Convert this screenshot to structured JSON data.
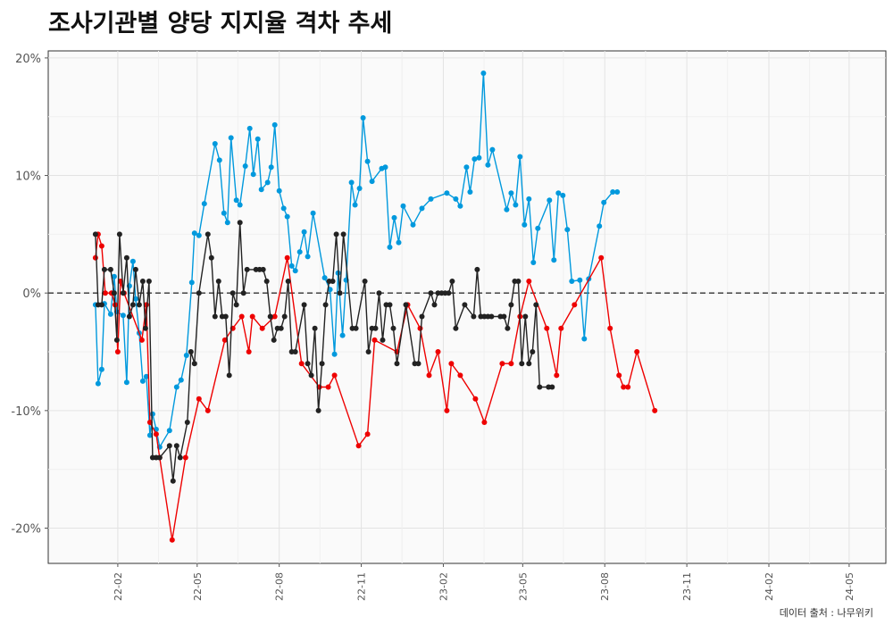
{
  "chart_data": {
    "type": "line",
    "title": "조사기관별 양당 지지율 격차 추세",
    "caption": "데이터 출처 : 나무위키",
    "xlabel": "",
    "ylabel": "",
    "x_axis": {
      "type": "date",
      "tick_labels": [
        "22-02",
        "22-05",
        "22-08",
        "22-11",
        "23-02",
        "23-05",
        "23-08",
        "23-11",
        "24-02",
        "24-05"
      ]
    },
    "y_axis": {
      "ylim": [
        -23,
        20.6
      ],
      "ticks": [
        -20,
        -10,
        0,
        10,
        20
      ],
      "tick_labels": [
        "-20%",
        "-10%",
        "0%",
        "10%",
        "20%"
      ]
    },
    "reference_line": {
      "y": 0,
      "style": "dashed"
    },
    "grid": true,
    "legend": "none",
    "series": [
      {
        "color": "#0099dd",
        "points": [
          [
            "2022-01-07",
            -1
          ],
          [
            "2022-01-10",
            -7.7
          ],
          [
            "2022-01-14",
            -6.5
          ],
          [
            "2022-01-17",
            -0.9
          ],
          [
            "2022-01-24",
            -1.8
          ],
          [
            "2022-01-28",
            1.4
          ],
          [
            "2022-01-31",
            -1.6
          ],
          [
            "2022-02-07",
            -1.9
          ],
          [
            "2022-02-11",
            -7.6
          ],
          [
            "2022-02-14",
            0.6
          ],
          [
            "2022-02-18",
            2.7
          ],
          [
            "2022-02-21",
            -0.5
          ],
          [
            "2022-02-25",
            -3.4
          ],
          [
            "2022-03-01",
            -7.5
          ],
          [
            "2022-03-05",
            -7.1
          ],
          [
            "2022-03-09",
            -12.1
          ],
          [
            "2022-03-12",
            -10.3
          ],
          [
            "2022-03-16",
            -11.6
          ],
          [
            "2022-03-20",
            -13.1
          ],
          [
            "2022-03-31",
            -11.7
          ],
          [
            "2022-04-08",
            -8
          ],
          [
            "2022-04-13",
            -7.4
          ],
          [
            "2022-04-19",
            -5.3
          ],
          [
            "2022-04-25",
            0.9
          ],
          [
            "2022-04-28",
            5.1
          ],
          [
            "2022-05-03",
            4.9
          ],
          [
            "2022-05-09",
            7.6
          ],
          [
            "2022-05-21",
            12.7
          ],
          [
            "2022-05-26",
            11.3
          ],
          [
            "2022-05-31",
            6.8
          ],
          [
            "2022-06-04",
            6.0
          ],
          [
            "2022-06-08",
            13.2
          ],
          [
            "2022-06-14",
            7.9
          ],
          [
            "2022-06-18",
            7.5
          ],
          [
            "2022-06-24",
            10.8
          ],
          [
            "2022-06-29",
            14.0
          ],
          [
            "2022-07-03",
            10.1
          ],
          [
            "2022-07-08",
            13.1
          ],
          [
            "2022-07-12",
            8.8
          ],
          [
            "2022-07-19",
            9.4
          ],
          [
            "2022-07-23",
            10.7
          ],
          [
            "2022-07-27",
            14.3
          ],
          [
            "2022-08-01",
            8.7
          ],
          [
            "2022-08-06",
            7.2
          ],
          [
            "2022-08-10",
            6.5
          ],
          [
            "2022-08-15",
            2.3
          ],
          [
            "2022-08-19",
            1.9
          ],
          [
            "2022-08-24",
            3.5
          ],
          [
            "2022-08-29",
            5.2
          ],
          [
            "2022-09-02",
            3.1
          ],
          [
            "2022-09-08",
            6.8
          ],
          [
            "2022-09-21",
            1.3
          ],
          [
            "2022-09-27",
            0.3
          ],
          [
            "2022-10-02",
            -5.2
          ],
          [
            "2022-10-06",
            1.7
          ],
          [
            "2022-10-11",
            -3.6
          ],
          [
            "2022-10-15",
            1.1
          ],
          [
            "2022-10-21",
            9.4
          ],
          [
            "2022-10-25",
            7.5
          ],
          [
            "2022-10-30",
            8.9
          ],
          [
            "2022-11-03",
            14.9
          ],
          [
            "2022-11-08",
            11.2
          ],
          [
            "2022-11-13",
            9.5
          ],
          [
            "2022-11-24",
            10.6
          ],
          [
            "2022-11-28",
            10.7
          ],
          [
            "2022-12-03",
            3.9
          ],
          [
            "2022-12-08",
            6.4
          ],
          [
            "2022-12-13",
            4.3
          ],
          [
            "2022-12-18",
            7.4
          ],
          [
            "2022-12-29",
            5.8
          ],
          [
            "2023-01-08",
            7.2
          ],
          [
            "2023-01-18",
            8.0
          ],
          [
            "2023-02-05",
            8.5
          ],
          [
            "2023-02-15",
            8.0
          ],
          [
            "2023-02-20",
            7.4
          ],
          [
            "2023-02-27",
            10.7
          ],
          [
            "2023-03-03",
            8.6
          ],
          [
            "2023-03-08",
            11.4
          ],
          [
            "2023-03-13",
            11.5
          ],
          [
            "2023-03-18",
            18.7
          ],
          [
            "2023-03-23",
            10.9
          ],
          [
            "2023-03-28",
            12.2
          ],
          [
            "2023-04-13",
            7.1
          ],
          [
            "2023-04-18",
            8.5
          ],
          [
            "2023-04-23",
            7.5
          ],
          [
            "2023-04-28",
            11.6
          ],
          [
            "2023-05-03",
            5.8
          ],
          [
            "2023-05-08",
            8.0
          ],
          [
            "2023-05-13",
            2.6
          ],
          [
            "2023-05-18",
            5.5
          ],
          [
            "2023-05-31",
            7.9
          ],
          [
            "2023-06-05",
            2.8
          ],
          [
            "2023-06-10",
            8.5
          ],
          [
            "2023-06-15",
            8.3
          ],
          [
            "2023-06-20",
            5.4
          ],
          [
            "2023-06-25",
            1.0
          ],
          [
            "2023-07-04",
            1.1
          ],
          [
            "2023-07-09",
            -3.9
          ],
          [
            "2023-07-14",
            1.2
          ],
          [
            "2023-07-26",
            5.7
          ],
          [
            "2023-07-31",
            7.7
          ],
          [
            "2023-08-10",
            8.6
          ],
          [
            "2023-08-15",
            8.6
          ]
        ]
      },
      {
        "color": "#ee0000",
        "points": [
          [
            "2022-01-07",
            3
          ],
          [
            "2022-01-10",
            5
          ],
          [
            "2022-01-14",
            4
          ],
          [
            "2022-01-18",
            0
          ],
          [
            "2022-01-25",
            0
          ],
          [
            "2022-01-29",
            -1
          ],
          [
            "2022-02-01",
            -5
          ],
          [
            "2022-02-04",
            1
          ],
          [
            "2022-02-08",
            0
          ],
          [
            "2022-02-28",
            -4
          ],
          [
            "2022-03-05",
            -1
          ],
          [
            "2022-03-09",
            -11
          ],
          [
            "2022-03-16",
            -12
          ],
          [
            "2022-03-20",
            -14
          ],
          [
            "2022-04-03",
            -21
          ],
          [
            "2022-04-18",
            -14
          ],
          [
            "2022-05-03",
            -9
          ],
          [
            "2022-05-13",
            -10
          ],
          [
            "2022-06-01",
            -4
          ],
          [
            "2022-06-10",
            -3
          ],
          [
            "2022-06-20",
            -2
          ],
          [
            "2022-06-28",
            -5
          ],
          [
            "2022-07-02",
            -2
          ],
          [
            "2022-07-13",
            -3
          ],
          [
            "2022-07-27",
            -2
          ],
          [
            "2022-08-10",
            3
          ],
          [
            "2022-08-26",
            -6
          ],
          [
            "2022-09-15",
            -8
          ],
          [
            "2022-09-25",
            -8
          ],
          [
            "2022-10-02",
            -7
          ],
          [
            "2022-10-29",
            -13
          ],
          [
            "2022-11-08",
            -12
          ],
          [
            "2022-11-16",
            -4
          ],
          [
            "2022-12-11",
            -5
          ],
          [
            "2022-12-23",
            -1
          ],
          [
            "2023-01-06",
            -3
          ],
          [
            "2023-01-16",
            -7
          ],
          [
            "2023-01-26",
            -5
          ],
          [
            "2023-02-05",
            -10
          ],
          [
            "2023-02-10",
            -6
          ],
          [
            "2023-02-20",
            -7
          ],
          [
            "2023-03-09",
            -9
          ],
          [
            "2023-03-19",
            -11
          ],
          [
            "2023-04-08",
            -6
          ],
          [
            "2023-04-18",
            -6
          ],
          [
            "2023-04-28",
            -2
          ],
          [
            "2023-05-08",
            1
          ],
          [
            "2023-05-28",
            -3
          ],
          [
            "2023-06-08",
            -7
          ],
          [
            "2023-06-13",
            -3
          ],
          [
            "2023-06-28",
            -1
          ],
          [
            "2023-07-28",
            3
          ],
          [
            "2023-08-07",
            -3
          ],
          [
            "2023-08-17",
            -7
          ],
          [
            "2023-08-22",
            -8
          ],
          [
            "2023-08-27",
            -8
          ],
          [
            "2023-09-06",
            -5
          ],
          [
            "2023-09-26",
            -10
          ]
        ]
      },
      {
        "color": "#222222",
        "points": [
          [
            "2022-01-07",
            5
          ],
          [
            "2022-01-10",
            -1
          ],
          [
            "2022-01-14",
            -1
          ],
          [
            "2022-01-17",
            2
          ],
          [
            "2022-01-24",
            2
          ],
          [
            "2022-01-28",
            0
          ],
          [
            "2022-01-31",
            -4
          ],
          [
            "2022-02-03",
            5
          ],
          [
            "2022-02-07",
            0
          ],
          [
            "2022-02-11",
            3
          ],
          [
            "2022-02-14",
            -2
          ],
          [
            "2022-02-18",
            -1
          ],
          [
            "2022-02-21",
            2
          ],
          [
            "2022-02-25",
            -1
          ],
          [
            "2022-03-01",
            1
          ],
          [
            "2022-03-04",
            -3
          ],
          [
            "2022-03-08",
            1
          ],
          [
            "2022-03-12",
            -14
          ],
          [
            "2022-03-16",
            -14
          ],
          [
            "2022-03-20",
            -14
          ],
          [
            "2022-03-31",
            -13
          ],
          [
            "2022-04-04",
            -16
          ],
          [
            "2022-04-08",
            -13
          ],
          [
            "2022-04-12",
            -14
          ],
          [
            "2022-04-20",
            -11
          ],
          [
            "2022-04-24",
            -5
          ],
          [
            "2022-04-28",
            -6
          ],
          [
            "2022-05-03",
            0
          ],
          [
            "2022-05-13",
            5
          ],
          [
            "2022-05-17",
            3
          ],
          [
            "2022-05-21",
            -2
          ],
          [
            "2022-05-25",
            1
          ],
          [
            "2022-05-29",
            -2
          ],
          [
            "2022-06-02",
            -2
          ],
          [
            "2022-06-06",
            -7
          ],
          [
            "2022-06-10",
            0
          ],
          [
            "2022-06-14",
            -1
          ],
          [
            "2022-06-18",
            6
          ],
          [
            "2022-06-22",
            0
          ],
          [
            "2022-06-26",
            2
          ],
          [
            "2022-07-06",
            2
          ],
          [
            "2022-07-10",
            2
          ],
          [
            "2022-07-14",
            2
          ],
          [
            "2022-07-18",
            1
          ],
          [
            "2022-07-22",
            -2
          ],
          [
            "2022-07-26",
            -4
          ],
          [
            "2022-07-30",
            -3
          ],
          [
            "2022-08-03",
            -3
          ],
          [
            "2022-08-07",
            -2
          ],
          [
            "2022-08-11",
            1
          ],
          [
            "2022-08-15",
            -5
          ],
          [
            "2022-08-19",
            -5
          ],
          [
            "2022-08-29",
            -1
          ],
          [
            "2022-09-02",
            -6
          ],
          [
            "2022-09-06",
            -7
          ],
          [
            "2022-09-10",
            -3
          ],
          [
            "2022-09-14",
            -10
          ],
          [
            "2022-09-18",
            -6
          ],
          [
            "2022-09-22",
            -1
          ],
          [
            "2022-09-26",
            1
          ],
          [
            "2022-09-30",
            1
          ],
          [
            "2022-10-04",
            5
          ],
          [
            "2022-10-08",
            0
          ],
          [
            "2022-10-12",
            5
          ],
          [
            "2022-10-22",
            -3
          ],
          [
            "2022-10-26",
            -3
          ],
          [
            "2022-11-05",
            1
          ],
          [
            "2022-11-09",
            -5
          ],
          [
            "2022-11-13",
            -3
          ],
          [
            "2022-11-17",
            -3
          ],
          [
            "2022-11-21",
            0
          ],
          [
            "2022-11-25",
            -4
          ],
          [
            "2022-11-29",
            -1
          ],
          [
            "2022-12-03",
            -1
          ],
          [
            "2022-12-07",
            -3
          ],
          [
            "2022-12-11",
            -6
          ],
          [
            "2022-12-21",
            -1
          ],
          [
            "2022-12-31",
            -6
          ],
          [
            "2023-01-04",
            -6
          ],
          [
            "2023-01-08",
            -2
          ],
          [
            "2023-01-18",
            0
          ],
          [
            "2023-01-22",
            -1
          ],
          [
            "2023-01-26",
            0
          ],
          [
            "2023-01-30",
            0
          ],
          [
            "2023-02-03",
            0
          ],
          [
            "2023-02-07",
            0
          ],
          [
            "2023-02-11",
            1
          ],
          [
            "2023-02-15",
            -3
          ],
          [
            "2023-02-25",
            -1
          ],
          [
            "2023-03-07",
            -2
          ],
          [
            "2023-03-11",
            2
          ],
          [
            "2023-03-15",
            -2
          ],
          [
            "2023-03-19",
            -2
          ],
          [
            "2023-03-23",
            -2
          ],
          [
            "2023-03-27",
            -2
          ],
          [
            "2023-04-06",
            -2
          ],
          [
            "2023-04-10",
            -2
          ],
          [
            "2023-04-14",
            -3
          ],
          [
            "2023-04-18",
            -1
          ],
          [
            "2023-04-22",
            1
          ],
          [
            "2023-04-26",
            1
          ],
          [
            "2023-04-30",
            -6
          ],
          [
            "2023-05-04",
            -2
          ],
          [
            "2023-05-08",
            -6
          ],
          [
            "2023-05-12",
            -5
          ],
          [
            "2023-05-16",
            -1
          ],
          [
            "2023-05-20",
            -8
          ],
          [
            "2023-05-30",
            -8
          ],
          [
            "2023-06-03",
            -8
          ]
        ]
      }
    ]
  }
}
